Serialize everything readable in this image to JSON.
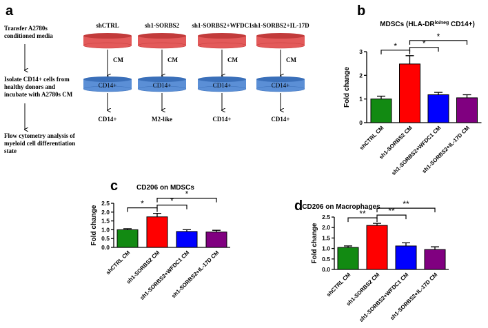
{
  "panel_a": {
    "label": "a",
    "steps": [
      [
        "Transfer A2780s",
        "conditioned media"
      ],
      [
        "Isolate CD14+ cells from",
        "healthy donors and",
        "incubate with A2780s CM"
      ],
      [
        "Flow cytometry analysis of",
        "myeloid cell differentiation",
        "state"
      ]
    ],
    "groups": [
      "shCTRL",
      "sh1-SORBS2",
      "sh1-SORBS2+WFDC1",
      "sh1-SORBS2+IL-17D"
    ],
    "medium_label": "CM",
    "cell_label": "CD14+",
    "outcomes": [
      "CD14+",
      "M2-like",
      "CD14+",
      "CD14+"
    ]
  },
  "chart_data": [
    {
      "type": "bar",
      "panel": "b",
      "title_parts": [
        "MDSCs (HLA-DR",
        "lo/neg",
        " CD14+)"
      ],
      "ylabel": "Fold change",
      "categories": [
        "shCTRL CM",
        "sh1-SORBS2 CM",
        "sh1-SORBS2+WFDC1 CM",
        "sh1-SORBS2+IL-17D CM"
      ],
      "values": [
        1.0,
        2.48,
        1.18,
        1.05
      ],
      "errors": [
        0.12,
        0.35,
        0.1,
        0.13
      ],
      "colors": [
        "#128a12",
        "#ff0000",
        "#0000ff",
        "#800080"
      ],
      "ylim": [
        0,
        3
      ],
      "yticks": [
        0,
        1,
        2,
        3
      ],
      "annotations": [
        {
          "text": "*",
          "from": 0,
          "to": 1
        },
        {
          "text": "*",
          "from": 1,
          "to": 2
        },
        {
          "text": "*",
          "from": 1,
          "to": 3
        }
      ]
    },
    {
      "type": "bar",
      "panel": "c",
      "title": "CD206  on  MDSCs",
      "ylabel": "Fold change",
      "categories": [
        "shCTRL CM",
        "sh1-SORBS2 CM",
        "sh1-SORBS2+WFDC1 CM",
        "sh1-SORBS2+IL-17D CM"
      ],
      "values": [
        1.0,
        1.73,
        0.9,
        0.87
      ],
      "errors": [
        0.06,
        0.2,
        0.1,
        0.1
      ],
      "colors": [
        "#128a12",
        "#ff0000",
        "#0000ff",
        "#800080"
      ],
      "ylim": [
        0,
        2.5
      ],
      "yticks": [
        {
          "value": 0,
          "label": "0.0"
        },
        {
          "value": 0.5,
          "label": "0.5"
        },
        {
          "value": 1,
          "label": "1.0"
        },
        {
          "value": 1.5,
          "label": "1.5"
        },
        {
          "value": 2,
          "label": "2.0"
        },
        {
          "value": 2.5,
          "label": "2.5"
        }
      ],
      "annotations": [
        {
          "text": "*",
          "from": 0,
          "to": 1
        },
        {
          "text": "*",
          "from": 1,
          "to": 2
        },
        {
          "text": "*",
          "from": 1,
          "to": 3
        }
      ]
    },
    {
      "type": "bar",
      "panel": "d",
      "title": "CD206 on  Macrophages",
      "ylabel": "Fold change",
      "categories": [
        "shCTRL CM",
        "sh1-SORBS2 CM",
        "sh1-SORBS2+WFDC1 CM",
        "sh1-SORBS2+IL-17D CM"
      ],
      "values": [
        1.05,
        2.1,
        1.12,
        0.95
      ],
      "errors": [
        0.07,
        0.1,
        0.15,
        0.13
      ],
      "colors": [
        "#128a12",
        "#ff0000",
        "#0000ff",
        "#800080"
      ],
      "ylim": [
        0,
        2.5
      ],
      "yticks": [
        {
          "value": 0,
          "label": "0.0"
        },
        {
          "value": 0.5,
          "label": "0.5"
        },
        {
          "value": 1,
          "label": "1.0"
        },
        {
          "value": 1.5,
          "label": "1.5"
        },
        {
          "value": 2,
          "label": "2.0"
        },
        {
          "value": 2.5,
          "label": "2.5"
        }
      ],
      "annotations": [
        {
          "text": "**",
          "from": 0,
          "to": 1
        },
        {
          "text": "**",
          "from": 1,
          "to": 2
        },
        {
          "text": "**",
          "from": 1,
          "to": 3
        }
      ]
    }
  ]
}
